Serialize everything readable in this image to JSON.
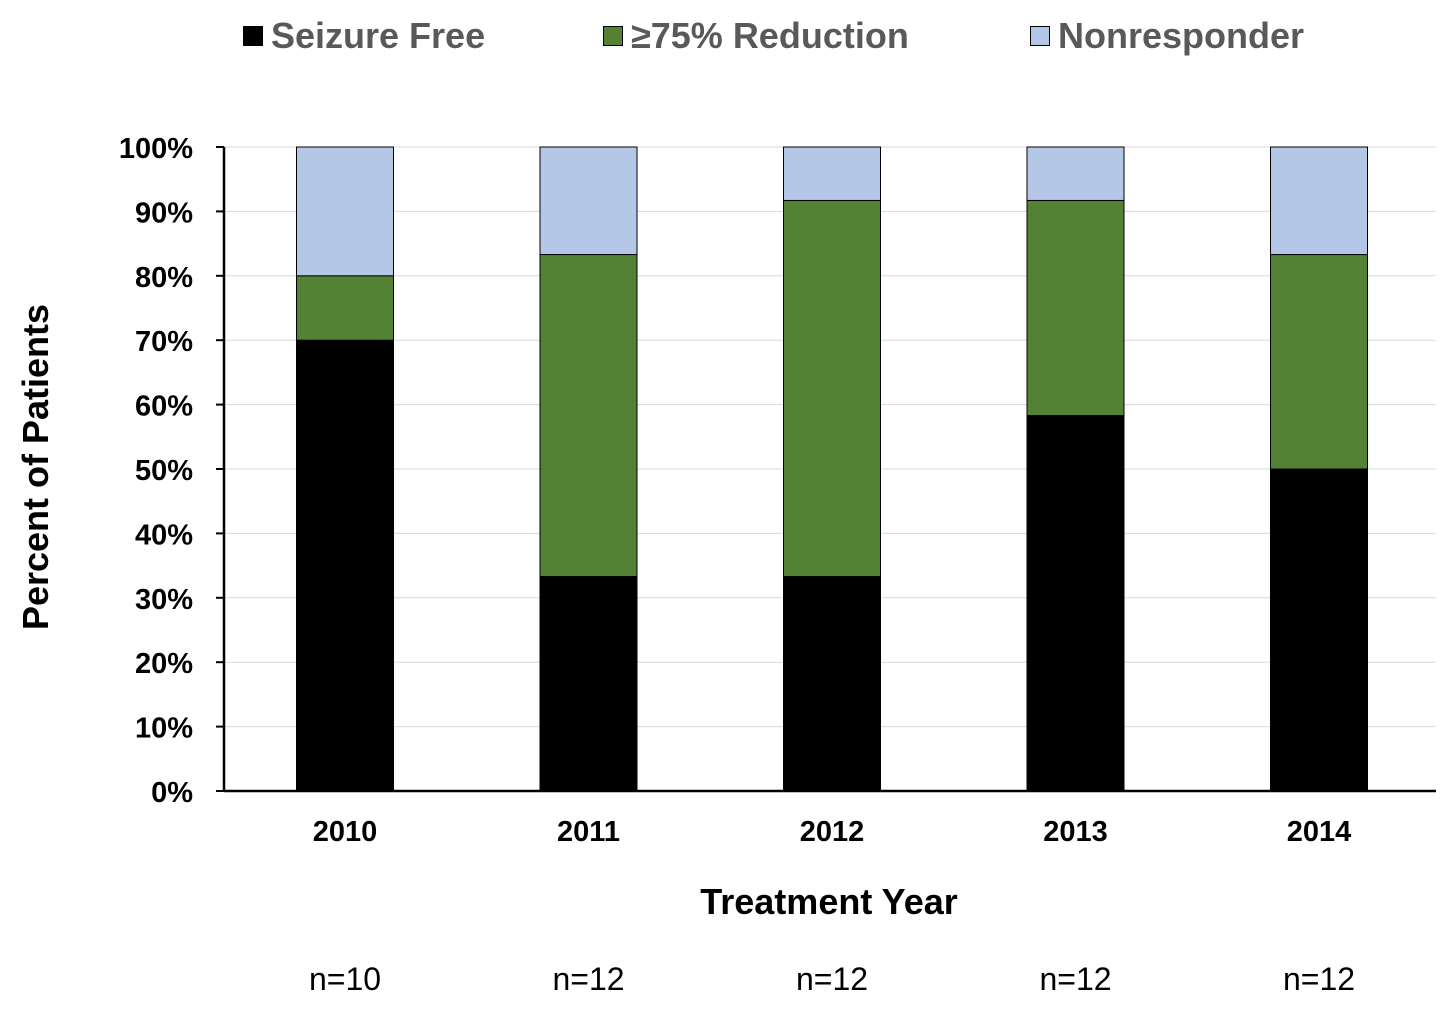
{
  "legend": [
    {
      "label": "Seizure Free",
      "color": "#000000"
    },
    {
      "label": "≥75% Reduction",
      "color": "#548235"
    },
    {
      "label": "Nonresponder",
      "color": "#B4C7E7"
    }
  ],
  "chart_data": {
    "type": "bar",
    "stacked": true,
    "categories": [
      "2010",
      "2011",
      "2012",
      "2013",
      "2014"
    ],
    "category_notes": [
      "n=10",
      "n=12",
      "n=12",
      "n=12",
      "n=12"
    ],
    "series": [
      {
        "name": "Seizure Free",
        "color": "#000000",
        "values": [
          70,
          33.3,
          33.3,
          58.3,
          50
        ]
      },
      {
        "name": "≥75% Reduction",
        "color": "#548235",
        "values": [
          10,
          50,
          58.4,
          33.4,
          33.3
        ]
      },
      {
        "name": "Nonresponder",
        "color": "#B4C7E7",
        "values": [
          20,
          16.7,
          8.3,
          8.3,
          16.7
        ]
      }
    ],
    "title": "",
    "xlabel": "Treatment Year",
    "ylabel": "Percent of Patients",
    "ylim": [
      0,
      100
    ],
    "yticks": [
      "0%",
      "10%",
      "20%",
      "30%",
      "40%",
      "50%",
      "60%",
      "70%",
      "80%",
      "90%",
      "100%"
    ],
    "grid": true,
    "legend_position": "top"
  }
}
